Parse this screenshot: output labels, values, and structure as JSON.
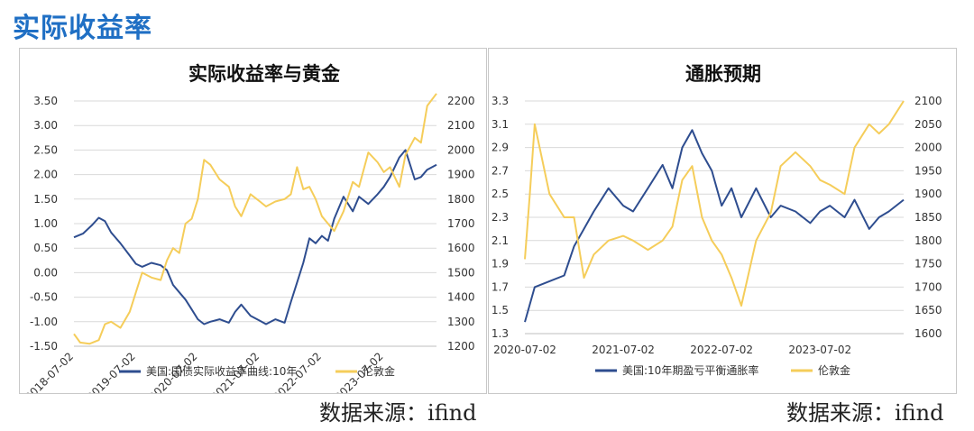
{
  "page": {
    "title": "实际收益率"
  },
  "colors": {
    "navy": "#2e4d8f",
    "gold": "#f5cd5a"
  },
  "chart_data": [
    {
      "type": "line",
      "title": "实际收益率与黄金",
      "x_ticks": [
        "2018-07-02",
        "2019-07-02",
        "2020-07-02",
        "2021-07-02",
        "2022-07-02",
        "2023-07-02"
      ],
      "x_range": [
        2018.5,
        2024.35
      ],
      "y_left": {
        "ticks": [
          "3.50",
          "3.00",
          "2.50",
          "2.00",
          "1.50",
          "1.00",
          "0.50",
          "0.00",
          "-0.50",
          "-1.00",
          "-1.50"
        ],
        "range": [
          -1.5,
          3.5
        ]
      },
      "y_right": {
        "ticks": [
          "2200",
          "2100",
          "2000",
          "1900",
          "1800",
          "1700",
          "1600",
          "1500",
          "1400",
          "1300",
          "1200"
        ],
        "range": [
          1200,
          2200
        ]
      },
      "grid": true,
      "legend_position": "bottom",
      "series": [
        {
          "name": "美国:国债实际收益率曲线:10年",
          "axis": "left",
          "color": "#2e4d8f",
          "x": [
            2018.5,
            2018.65,
            2018.8,
            2018.9,
            2019.0,
            2019.1,
            2019.25,
            2019.4,
            2019.5,
            2019.6,
            2019.75,
            2019.9,
            2020.0,
            2020.1,
            2020.2,
            2020.3,
            2020.4,
            2020.5,
            2020.6,
            2020.7,
            2020.85,
            2021.0,
            2021.1,
            2021.2,
            2021.35,
            2021.5,
            2021.6,
            2021.75,
            2021.9,
            2022.0,
            2022.1,
            2022.2,
            2022.3,
            2022.4,
            2022.5,
            2022.6,
            2022.7,
            2022.85,
            2023.0,
            2023.1,
            2023.25,
            2023.4,
            2023.5,
            2023.6,
            2023.75,
            2023.85,
            2024.0,
            2024.1,
            2024.2,
            2024.35
          ],
          "y": [
            0.72,
            0.8,
            0.98,
            1.12,
            1.05,
            0.82,
            0.6,
            0.35,
            0.18,
            0.12,
            0.2,
            0.15,
            0.05,
            -0.25,
            -0.4,
            -0.55,
            -0.75,
            -0.95,
            -1.05,
            -1.0,
            -0.95,
            -1.02,
            -0.8,
            -0.65,
            -0.88,
            -0.98,
            -1.05,
            -0.95,
            -1.02,
            -0.6,
            -0.2,
            0.2,
            0.7,
            0.6,
            0.75,
            0.65,
            1.1,
            1.55,
            1.25,
            1.55,
            1.4,
            1.6,
            1.75,
            1.95,
            2.35,
            2.5,
            1.9,
            1.95,
            2.1,
            2.2
          ]
        },
        {
          "name": "伦敦金",
          "axis": "right",
          "color": "#f5cd5a",
          "x": [
            2018.5,
            2018.6,
            2018.75,
            2018.9,
            2019.0,
            2019.1,
            2019.25,
            2019.4,
            2019.5,
            2019.6,
            2019.75,
            2019.9,
            2020.0,
            2020.1,
            2020.2,
            2020.3,
            2020.4,
            2020.5,
            2020.6,
            2020.7,
            2020.85,
            2021.0,
            2021.1,
            2021.2,
            2021.35,
            2021.5,
            2021.6,
            2021.75,
            2021.9,
            2022.0,
            2022.1,
            2022.2,
            2022.3,
            2022.4,
            2022.5,
            2022.6,
            2022.7,
            2022.85,
            2023.0,
            2023.1,
            2023.25,
            2023.4,
            2023.5,
            2023.6,
            2023.75,
            2023.85,
            2024.0,
            2024.1,
            2024.2,
            2024.35
          ],
          "y": [
            1250,
            1215,
            1210,
            1225,
            1290,
            1300,
            1275,
            1340,
            1420,
            1500,
            1480,
            1470,
            1550,
            1600,
            1580,
            1700,
            1720,
            1800,
            1960,
            1940,
            1880,
            1850,
            1770,
            1730,
            1820,
            1790,
            1770,
            1790,
            1800,
            1820,
            1930,
            1840,
            1850,
            1800,
            1730,
            1700,
            1670,
            1750,
            1870,
            1850,
            1990,
            1950,
            1910,
            1930,
            1850,
            1980,
            2050,
            2030,
            2180,
            2230
          ]
        }
      ]
    },
    {
      "type": "line",
      "title": "通胀预期",
      "x_ticks": [
        "2020-07-02",
        "2021-07-02",
        "2022-07-02",
        "2023-07-02"
      ],
      "x_range": [
        2020.5,
        2024.35
      ],
      "y_left": {
        "ticks": [
          "3.3",
          "3.1",
          "2.9",
          "2.7",
          "2.5",
          "2.3",
          "2.1",
          "1.9",
          "1.7",
          "1.5",
          "1.3"
        ],
        "range": [
          1.3,
          3.3
        ]
      },
      "y_right": {
        "ticks": [
          "2100",
          "2050",
          "2000",
          "1950",
          "1900",
          "1850",
          "1800",
          "1750",
          "1700",
          "1650",
          "1600"
        ],
        "range": [
          1600,
          2100
        ]
      },
      "grid": true,
      "legend_position": "bottom",
      "series": [
        {
          "name": "美国:10年期盈亏平衡通胀率",
          "axis": "left",
          "color": "#2e4d8f",
          "x": [
            2020.5,
            2020.6,
            2020.75,
            2020.9,
            2021.0,
            2021.1,
            2021.2,
            2021.35,
            2021.5,
            2021.6,
            2021.75,
            2021.9,
            2022.0,
            2022.1,
            2022.2,
            2022.3,
            2022.4,
            2022.5,
            2022.6,
            2022.7,
            2022.85,
            2023.0,
            2023.1,
            2023.25,
            2023.4,
            2023.5,
            2023.6,
            2023.75,
            2023.85,
            2024.0,
            2024.1,
            2024.2,
            2024.35
          ],
          "y": [
            1.4,
            1.7,
            1.75,
            1.8,
            2.05,
            2.2,
            2.35,
            2.55,
            2.4,
            2.35,
            2.55,
            2.75,
            2.55,
            2.9,
            3.05,
            2.85,
            2.7,
            2.4,
            2.55,
            2.3,
            2.55,
            2.3,
            2.4,
            2.35,
            2.25,
            2.35,
            2.4,
            2.3,
            2.45,
            2.2,
            2.3,
            2.35,
            2.45
          ]
        },
        {
          "name": "伦敦金",
          "axis": "right",
          "color": "#f5cd5a",
          "x": [
            2020.5,
            2020.55,
            2020.6,
            2020.75,
            2020.9,
            2021.0,
            2021.1,
            2021.2,
            2021.35,
            2021.5,
            2021.6,
            2021.75,
            2021.9,
            2022.0,
            2022.1,
            2022.2,
            2022.3,
            2022.4,
            2022.5,
            2022.6,
            2022.7,
            2022.85,
            2023.0,
            2023.1,
            2023.25,
            2023.4,
            2023.5,
            2023.6,
            2023.75,
            2023.85,
            2024.0,
            2024.1,
            2024.2,
            2024.35
          ],
          "y": [
            1760,
            1900,
            2050,
            1900,
            1850,
            1850,
            1720,
            1770,
            1800,
            1810,
            1800,
            1780,
            1800,
            1830,
            1930,
            1960,
            1850,
            1800,
            1770,
            1720,
            1660,
            1800,
            1860,
            1960,
            1990,
            1960,
            1930,
            1920,
            1900,
            2000,
            2050,
            2030,
            2050,
            2100
          ]
        }
      ]
    }
  ],
  "source": "数据来源：ifind"
}
